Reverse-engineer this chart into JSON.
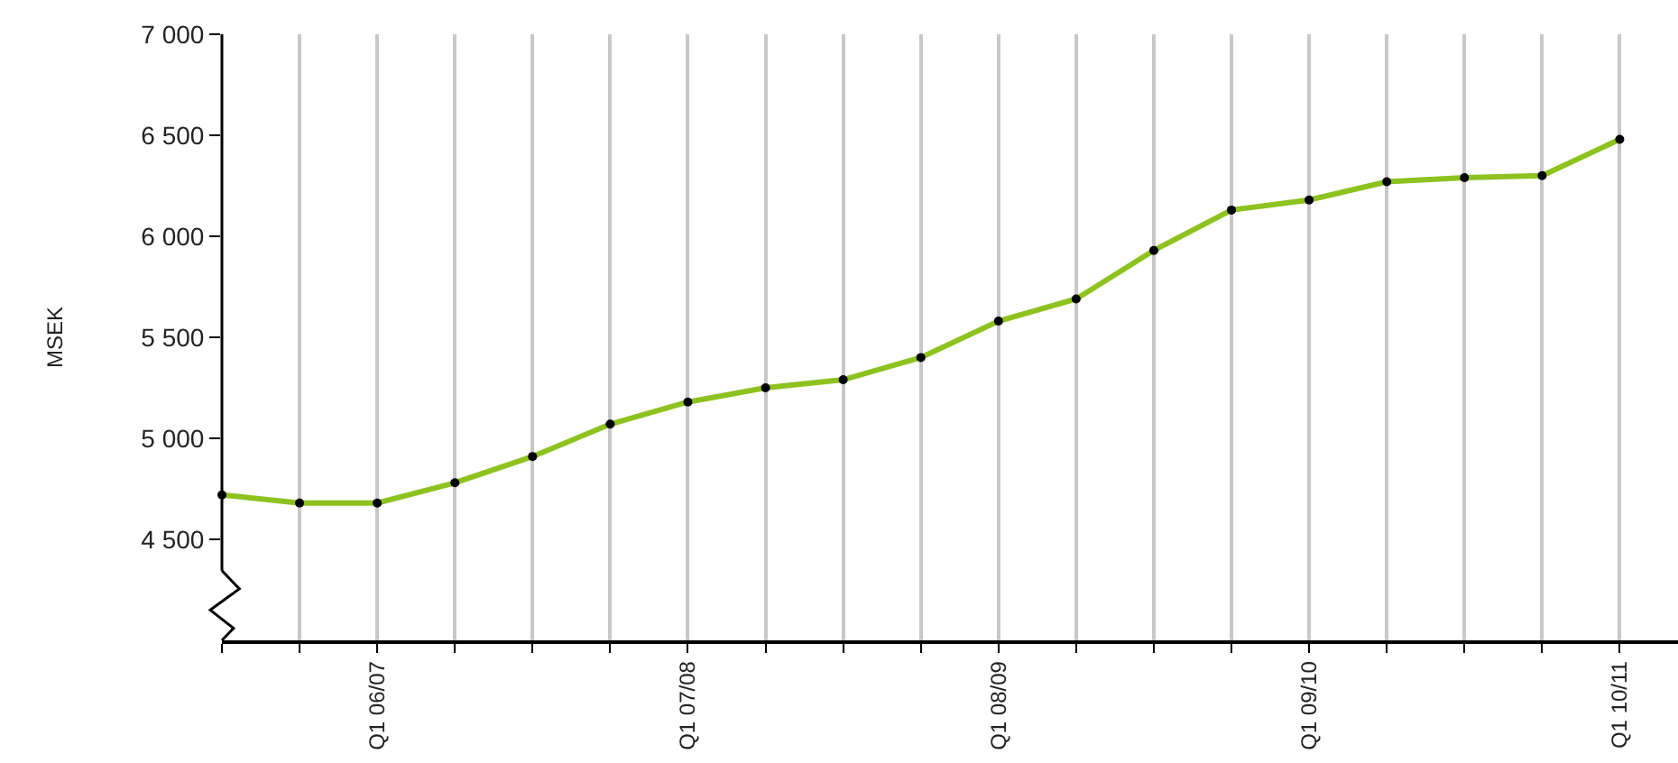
{
  "chart_data": {
    "type": "line",
    "ylabel": "MSEK",
    "categories": [
      null,
      null,
      "Q1 06/07",
      null,
      null,
      null,
      "Q1 07/08",
      null,
      null,
      null,
      "Q1 08/09",
      null,
      null,
      null,
      "Q1 09/10",
      null,
      null,
      null,
      "Q1 10/11"
    ],
    "series": [
      {
        "color": "#8dc21f",
        "values": [
          4720,
          4680,
          4680,
          4780,
          4910,
          5070,
          5180,
          5250,
          5290,
          5400,
          5580,
          5690,
          5930,
          6130,
          6180,
          6270,
          6290,
          6300,
          6480
        ]
      }
    ],
    "ylim": [
      4000,
      7000
    ],
    "yticks": [
      {
        "value": 4500,
        "label": "4 500"
      },
      {
        "value": 5000,
        "label": "5 000"
      },
      {
        "value": 5500,
        "label": "5 500"
      },
      {
        "value": 6000,
        "label": "6 000"
      },
      {
        "value": 6500,
        "label": "6 500"
      },
      {
        "value": 7000,
        "label": "7 000"
      }
    ],
    "grid": "x",
    "marker": "circle",
    "line_style": "solid",
    "legend": false
  }
}
